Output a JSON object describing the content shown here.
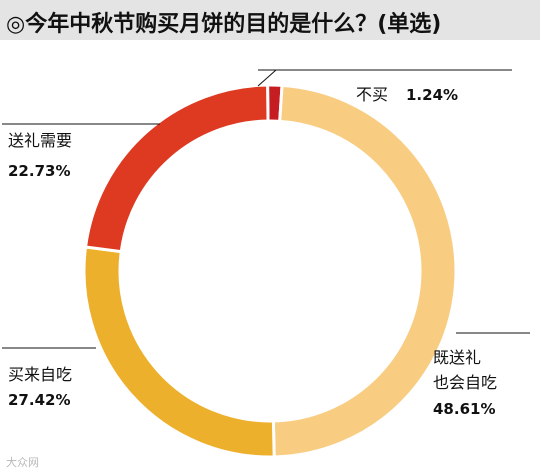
{
  "title": "◎今年中秋节购买月饼的目的是什么？(单选)",
  "colors": {
    "title_bg": "#e4e4e4",
    "gift": "#de3a22",
    "self": "#edb02c",
    "both": "#f8cd82",
    "none": "#c61d22"
  },
  "chart_data": {
    "type": "pie",
    "title": "◎今年中秋节购买月饼的目的是什么？(单选)",
    "donut": true,
    "slices": [
      {
        "label": "不买",
        "value": 1.24,
        "value_label": "1.24%",
        "color": "#c61d22"
      },
      {
        "label": "既送礼也会自吃",
        "label_lines": [
          "既送礼",
          "也会自吃"
        ],
        "value": 48.61,
        "value_label": "48.61%",
        "color": "#f8cd82"
      },
      {
        "label": "买来自吃",
        "value": 27.42,
        "value_label": "27.42%",
        "color": "#edb02c"
      },
      {
        "label": "送礼需要",
        "value": 22.73,
        "value_label": "22.73%",
        "color": "#de3a22"
      }
    ]
  },
  "watermark": "大众网"
}
